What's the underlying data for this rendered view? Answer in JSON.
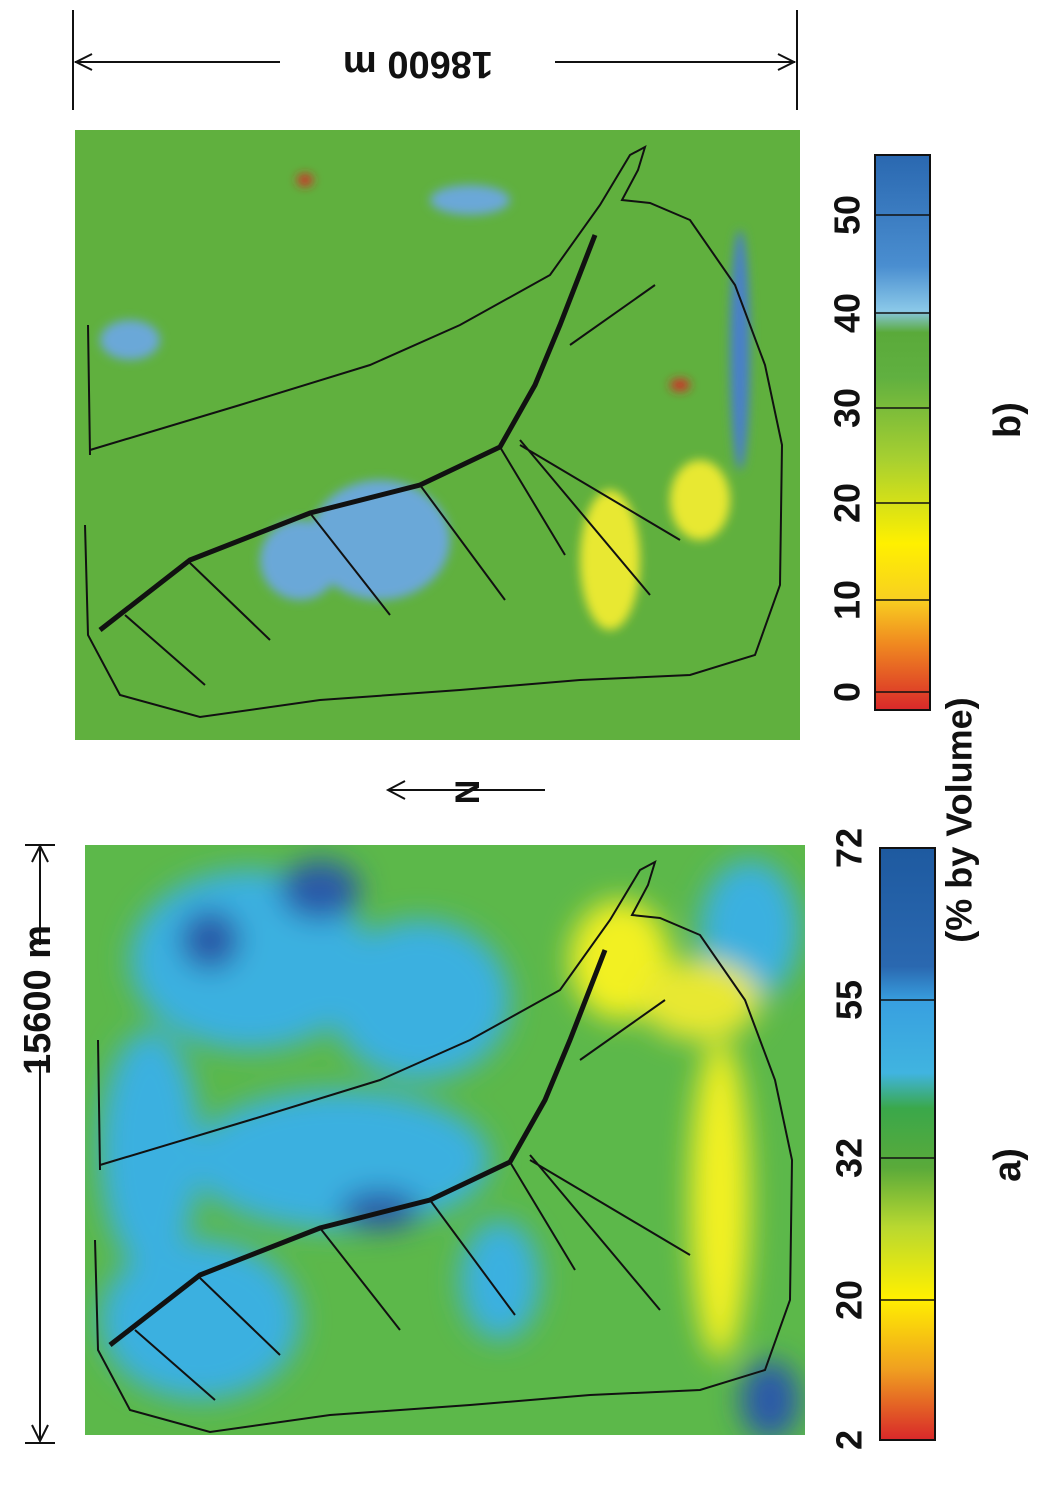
{
  "scale_bars": [
    {
      "label": "15600 m"
    },
    {
      "label": "18600 m"
    }
  ],
  "north_label": "N",
  "units_label": "(% by Volume)",
  "panels": [
    {
      "label": "a)",
      "colorbar_ticks": [
        "2",
        "20",
        "32",
        "55",
        "72"
      ]
    },
    {
      "label": "b)",
      "colorbar_ticks": [
        "0",
        "10",
        "20",
        "30",
        "40",
        "50"
      ]
    }
  ]
}
